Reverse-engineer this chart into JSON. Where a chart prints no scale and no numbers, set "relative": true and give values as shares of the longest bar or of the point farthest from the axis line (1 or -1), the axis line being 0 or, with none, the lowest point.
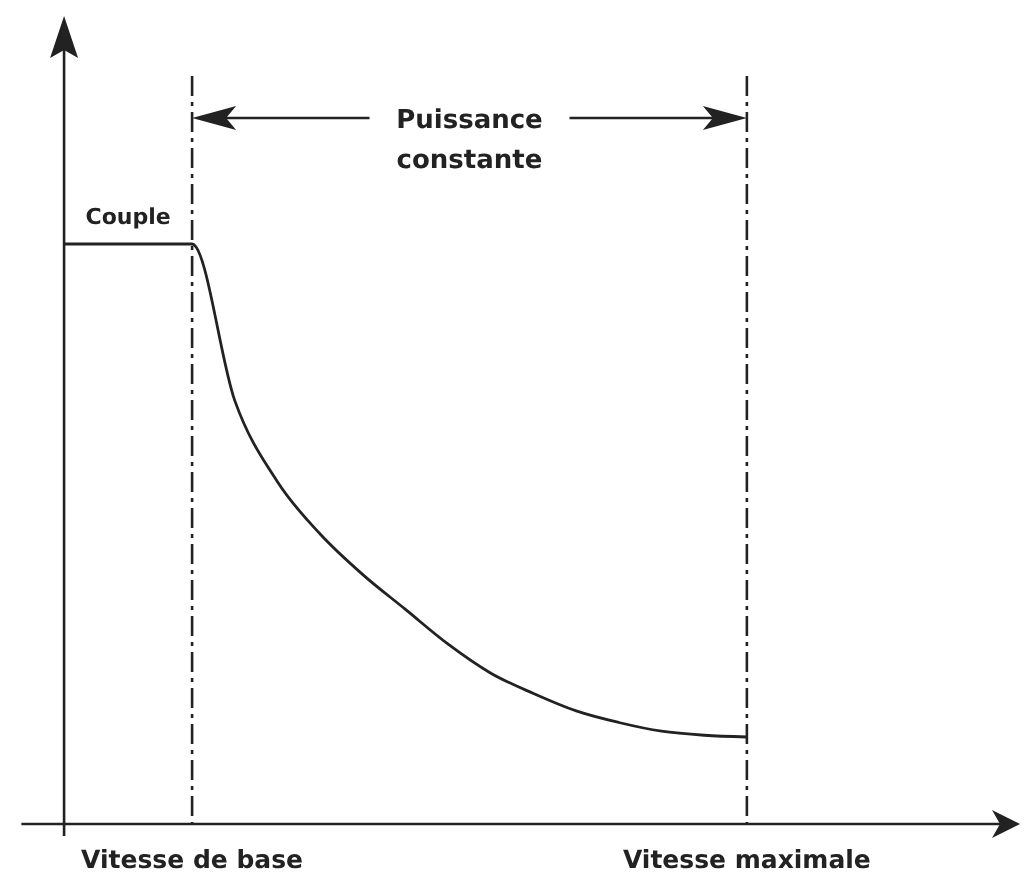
{
  "chart_data": {
    "type": "line",
    "relative": true,
    "marker": "none",
    "categories": [
      null,
      null,
      null,
      "Vitesse de base",
      null,
      null,
      null,
      null,
      null,
      null,
      null,
      null,
      null,
      null,
      null,
      null,
      "Vitesse maximale",
      null,
      null,
      null,
      null,
      null,
      null
    ],
    "series": [
      {
        "name": "Couple",
        "color": "#222222",
        "values": [
          1,
          1,
          1,
          1,
          0.73,
          0.59,
          0.5,
          0.43,
          0.37,
          0.31,
          0.26,
          0.225,
          0.195,
          0.175,
          0.16,
          0.153,
          0.15,
          null,
          null,
          null,
          null,
          null,
          null
        ]
      }
    ],
    "ref_lines": [
      {
        "axis": "x",
        "value": "Vitesse de base",
        "line_style": "dashed",
        "color": "#222222"
      },
      {
        "axis": "x",
        "value": "Vitesse maximale",
        "line_style": "dashed",
        "color": "#222222"
      }
    ],
    "annotations": [
      "Puissance constante"
    ]
  }
}
